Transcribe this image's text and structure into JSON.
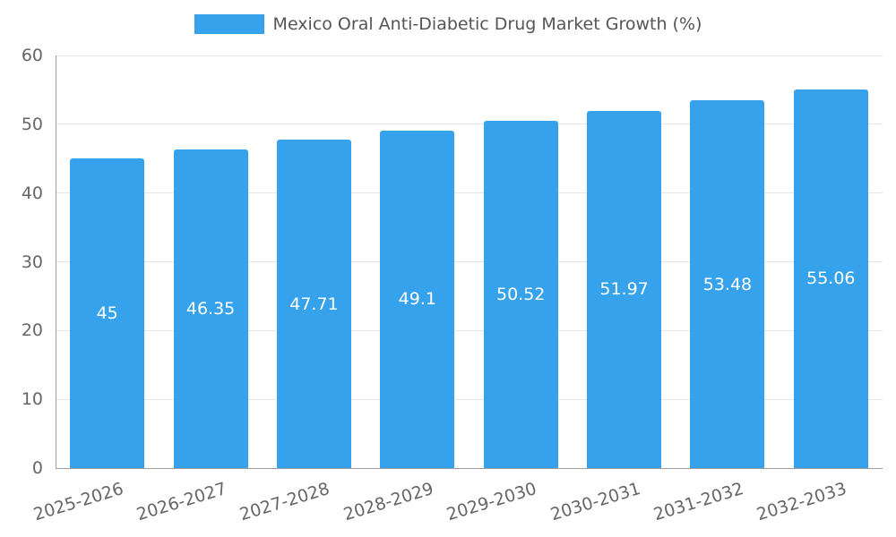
{
  "chart_data": {
    "type": "bar",
    "title": "Mexico Oral Anti-Diabetic Drug Market Growth (%)",
    "categories": [
      "2025-2026",
      "2026-2027",
      "2027-2028",
      "2028-2029",
      "2029-2030",
      "2030-2031",
      "2031-2032",
      "2032-2033"
    ],
    "values": [
      45,
      46.35,
      47.71,
      49.1,
      50.52,
      51.97,
      53.48,
      55.06
    ],
    "value_labels": [
      "45",
      "46.35",
      "47.71",
      "49.1",
      "50.52",
      "51.97",
      "53.48",
      "55.06"
    ],
    "xlabel": "",
    "ylabel": "",
    "ylim": [
      0,
      60
    ],
    "yticks": [
      0,
      10,
      20,
      30,
      40,
      50,
      60
    ],
    "grid": true,
    "legend_position": "top",
    "colors": {
      "bar": "#36A2EB",
      "bar_label_text": "#FFFFFF",
      "grid_line": "#E5E5E5",
      "axis_line": "#9E9E9E",
      "tick_text": "#666666",
      "title_text": "#555555",
      "background": "#FFFFFF"
    }
  }
}
